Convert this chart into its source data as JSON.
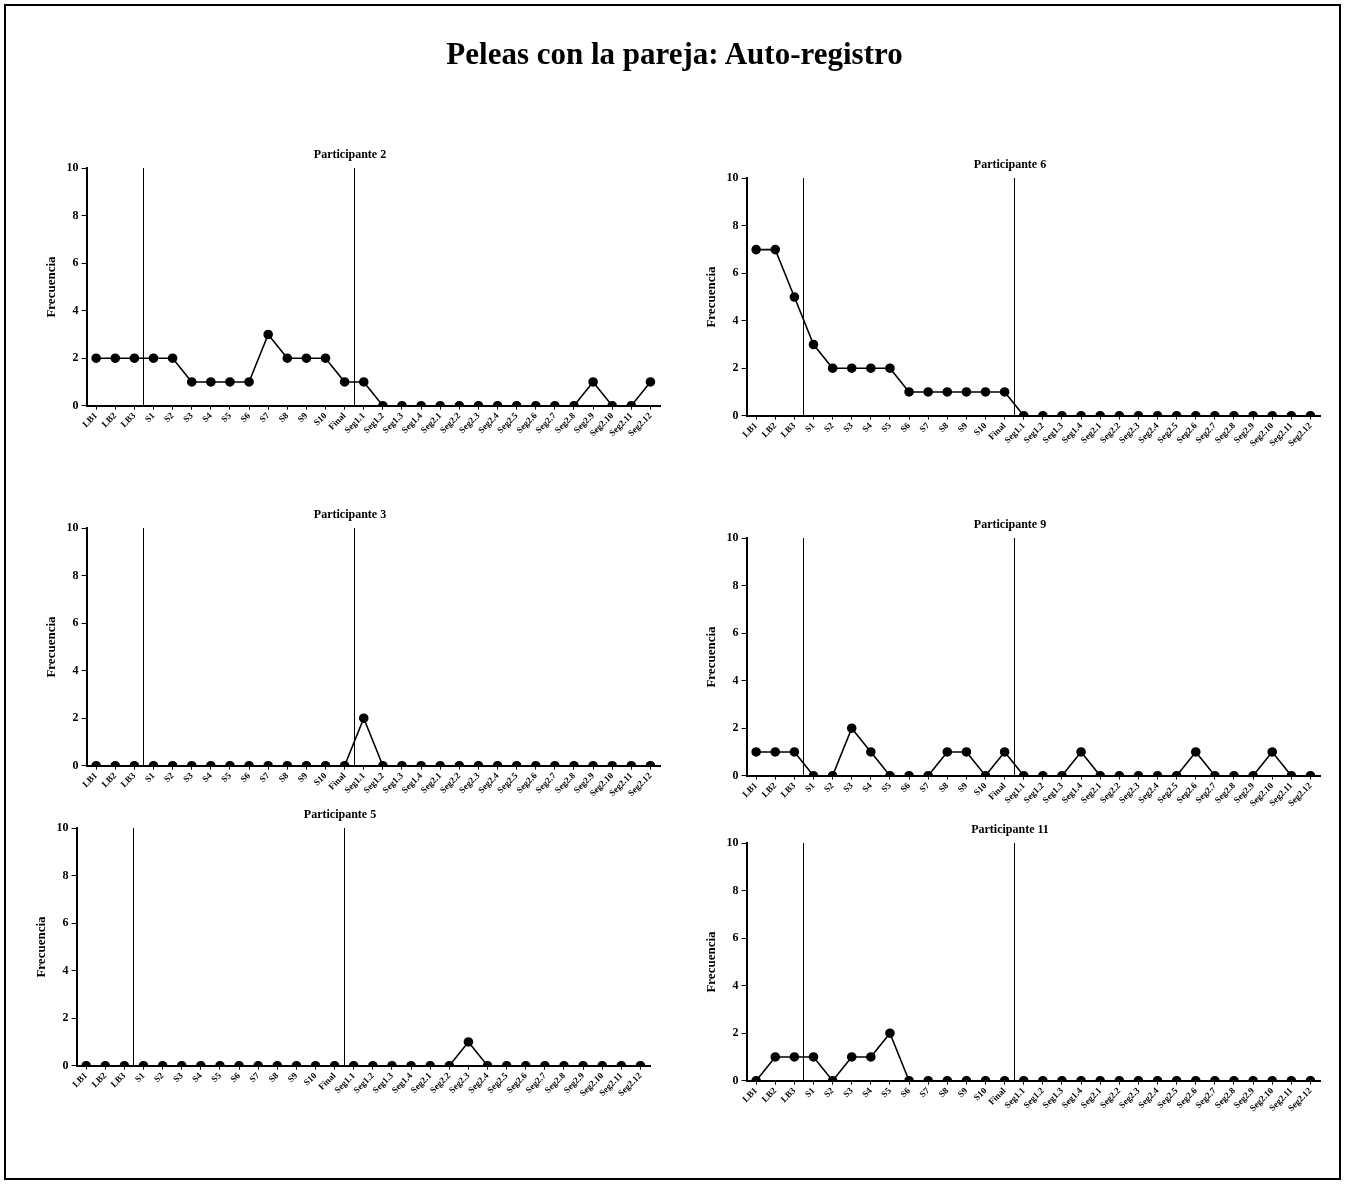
{
  "chart_data": [
    {
      "type": "line",
      "title": "Participante 2",
      "ylabel": "Frecuencia",
      "annotations": [
        "Peleas con la pareja: Auto-registro"
      ],
      "categories": [
        "LB1",
        "LB2",
        "LB3",
        "S1",
        "S2",
        "S3",
        "S4",
        "S5",
        "S6",
        "S7",
        "S8",
        "S9",
        "S10",
        "Final",
        "Seg1.1",
        "Seg1.2",
        "Seg1.3",
        "Seg1.4",
        "Seg2.1",
        "Seg2.2",
        "Seg2.3",
        "Seg2.4",
        "Seg2.5",
        "Seg2.6",
        "Seg2.7",
        "Seg2.8",
        "Seg2.9",
        "Seg2.10",
        "Seg2.11",
        "Seg2.12"
      ],
      "values": [
        2,
        2,
        2,
        2,
        2,
        1,
        1,
        1,
        1,
        3,
        2,
        2,
        2,
        1,
        1,
        0,
        0,
        0,
        0,
        0,
        0,
        0,
        0,
        0,
        0,
        0,
        1,
        0,
        0,
        1
      ],
      "color": "#000000",
      "ylim": [
        0,
        10
      ],
      "yticks": [
        0,
        2,
        4,
        6,
        8,
        10
      ],
      "marker": "circle",
      "line_style": "solid",
      "grid": false,
      "legend": false
    },
    {
      "type": "line",
      "title": "Participante 6",
      "ylabel": "Frecuencia",
      "categories": [
        "LB1",
        "LB2",
        "LB3",
        "S1",
        "S2",
        "S3",
        "S4",
        "S5",
        "S6",
        "S7",
        "S8",
        "S9",
        "S10",
        "Final",
        "Seg1.1",
        "Seg1.2",
        "Seg1.3",
        "Seg1.4",
        "Seg2.1",
        "Seg2.2",
        "Seg2.3",
        "Seg2.4",
        "Seg2.5",
        "Seg2.6",
        "Seg2.7",
        "Seg2.8",
        "Seg2.9",
        "Seg2.10",
        "Seg2.11",
        "Seg2.12"
      ],
      "values": [
        7,
        7,
        5,
        3,
        2,
        2,
        2,
        2,
        1,
        1,
        1,
        1,
        1,
        1,
        0,
        0,
        0,
        0,
        0,
        0,
        0,
        0,
        0,
        0,
        0,
        0,
        0,
        0,
        0,
        0
      ],
      "color": "#000000",
      "ylim": [
        0,
        10
      ],
      "yticks": [
        0,
        2,
        4,
        6,
        8,
        10
      ],
      "marker": "circle",
      "line_style": "solid",
      "grid": false,
      "legend": false
    },
    {
      "type": "line",
      "title": "Participante 3",
      "ylabel": "Frecuencia",
      "categories": [
        "LB1",
        "LB2",
        "LB3",
        "S1",
        "S2",
        "S3",
        "S4",
        "S5",
        "S6",
        "S7",
        "S8",
        "S9",
        "S10",
        "Final",
        "Seg1.1",
        "Seg1.2",
        "Seg1.3",
        "Seg1.4",
        "Seg2.1",
        "Seg2.2",
        "Seg2.3",
        "Seg2.4",
        "Seg2.5",
        "Seg2.6",
        "Seg2.7",
        "Seg2.8",
        "Seg2.9",
        "Seg2.10",
        "Seg2.11",
        "Seg2.12"
      ],
      "values": [
        0,
        0,
        0,
        0,
        0,
        0,
        0,
        0,
        0,
        0,
        0,
        0,
        0,
        0,
        2,
        0,
        0,
        0,
        0,
        0,
        0,
        0,
        0,
        0,
        0,
        0,
        0,
        0,
        0,
        0
      ],
      "color": "#000000",
      "ylim": [
        0,
        10
      ],
      "yticks": [
        0,
        2,
        4,
        6,
        8,
        10
      ],
      "marker": "circle",
      "line_style": "solid",
      "grid": false,
      "legend": false
    },
    {
      "type": "line",
      "title": "Participante 9",
      "ylabel": "Frecuencia",
      "categories": [
        "LB1",
        "LB2",
        "LB3",
        "S1",
        "S2",
        "S3",
        "S4",
        "S5",
        "S6",
        "S7",
        "S8",
        "S9",
        "S10",
        "Final",
        "Seg1.1",
        "Seg1.2",
        "Seg1.3",
        "Seg1.4",
        "Seg2.1",
        "Seg2.2",
        "Seg2.3",
        "Seg2.4",
        "Seg2.5",
        "Seg2.6",
        "Seg2.7",
        "Seg2.8",
        "Seg2.9",
        "Seg2.10",
        "Seg2.11",
        "Seg2.12"
      ],
      "values": [
        1,
        1,
        1,
        0,
        0,
        2,
        1,
        0,
        0,
        0,
        1,
        1,
        0,
        1,
        0,
        0,
        0,
        1,
        0,
        0,
        0,
        0,
        0,
        1,
        0,
        0,
        0,
        1,
        0,
        0
      ],
      "color": "#000000",
      "ylim": [
        0,
        10
      ],
      "yticks": [
        0,
        2,
        4,
        6,
        8,
        10
      ],
      "marker": "circle",
      "line_style": "solid",
      "grid": false,
      "legend": false
    },
    {
      "type": "line",
      "title": "Participante 5",
      "ylabel": "Frecuencia",
      "categories": [
        "LB1",
        "LB2",
        "LB3",
        "S1",
        "S2",
        "S3",
        "S4",
        "S5",
        "S6",
        "S7",
        "S8",
        "S9",
        "S10",
        "Final",
        "Seg1.1",
        "Seg1.2",
        "Seg1.3",
        "Seg1.4",
        "Seg2.1",
        "Seg2.2",
        "Seg2.3",
        "Seg2.4",
        "Seg2.5",
        "Seg2.6",
        "Seg2.7",
        "Seg2.8",
        "Seg2.9",
        "Seg2.10",
        "Seg2.11",
        "Seg2.12"
      ],
      "values": [
        0,
        0,
        0,
        0,
        0,
        0,
        0,
        0,
        0,
        0,
        0,
        0,
        0,
        0,
        0,
        0,
        0,
        0,
        0,
        0,
        1,
        0,
        0,
        0,
        0,
        0,
        0,
        0,
        0,
        0
      ],
      "color": "#000000",
      "ylim": [
        0,
        10
      ],
      "yticks": [
        0,
        2,
        4,
        6,
        8,
        10
      ],
      "marker": "circle",
      "line_style": "solid",
      "grid": false,
      "legend": false
    },
    {
      "type": "line",
      "title": "Participante 11",
      "ylabel": "Frecuencia",
      "categories": [
        "LB1",
        "LB2",
        "LB3",
        "S1",
        "S2",
        "S3",
        "S4",
        "S5",
        "S6",
        "S7",
        "S8",
        "S9",
        "S10",
        "Final",
        "Seg1.1",
        "Seg1.2",
        "Seg1.3",
        "Seg1.4",
        "Seg2.1",
        "Seg2.2",
        "Seg2.3",
        "Seg2.4",
        "Seg2.5",
        "Seg2.6",
        "Seg2.7",
        "Seg2.8",
        "Seg2.9",
        "Seg2.10",
        "Seg2.11",
        "Seg2.12"
      ],
      "values": [
        0,
        1,
        1,
        1,
        0,
        1,
        1,
        2,
        0,
        0,
        0,
        0,
        0,
        0,
        0,
        0,
        0,
        0,
        0,
        0,
        0,
        0,
        0,
        0,
        0,
        0,
        0,
        0,
        0,
        0
      ],
      "color": "#000000",
      "ylim": [
        0,
        10
      ],
      "yticks": [
        0,
        2,
        4,
        6,
        8,
        10
      ],
      "marker": "circle",
      "line_style": "solid",
      "grid": false,
      "legend": false
    }
  ]
}
